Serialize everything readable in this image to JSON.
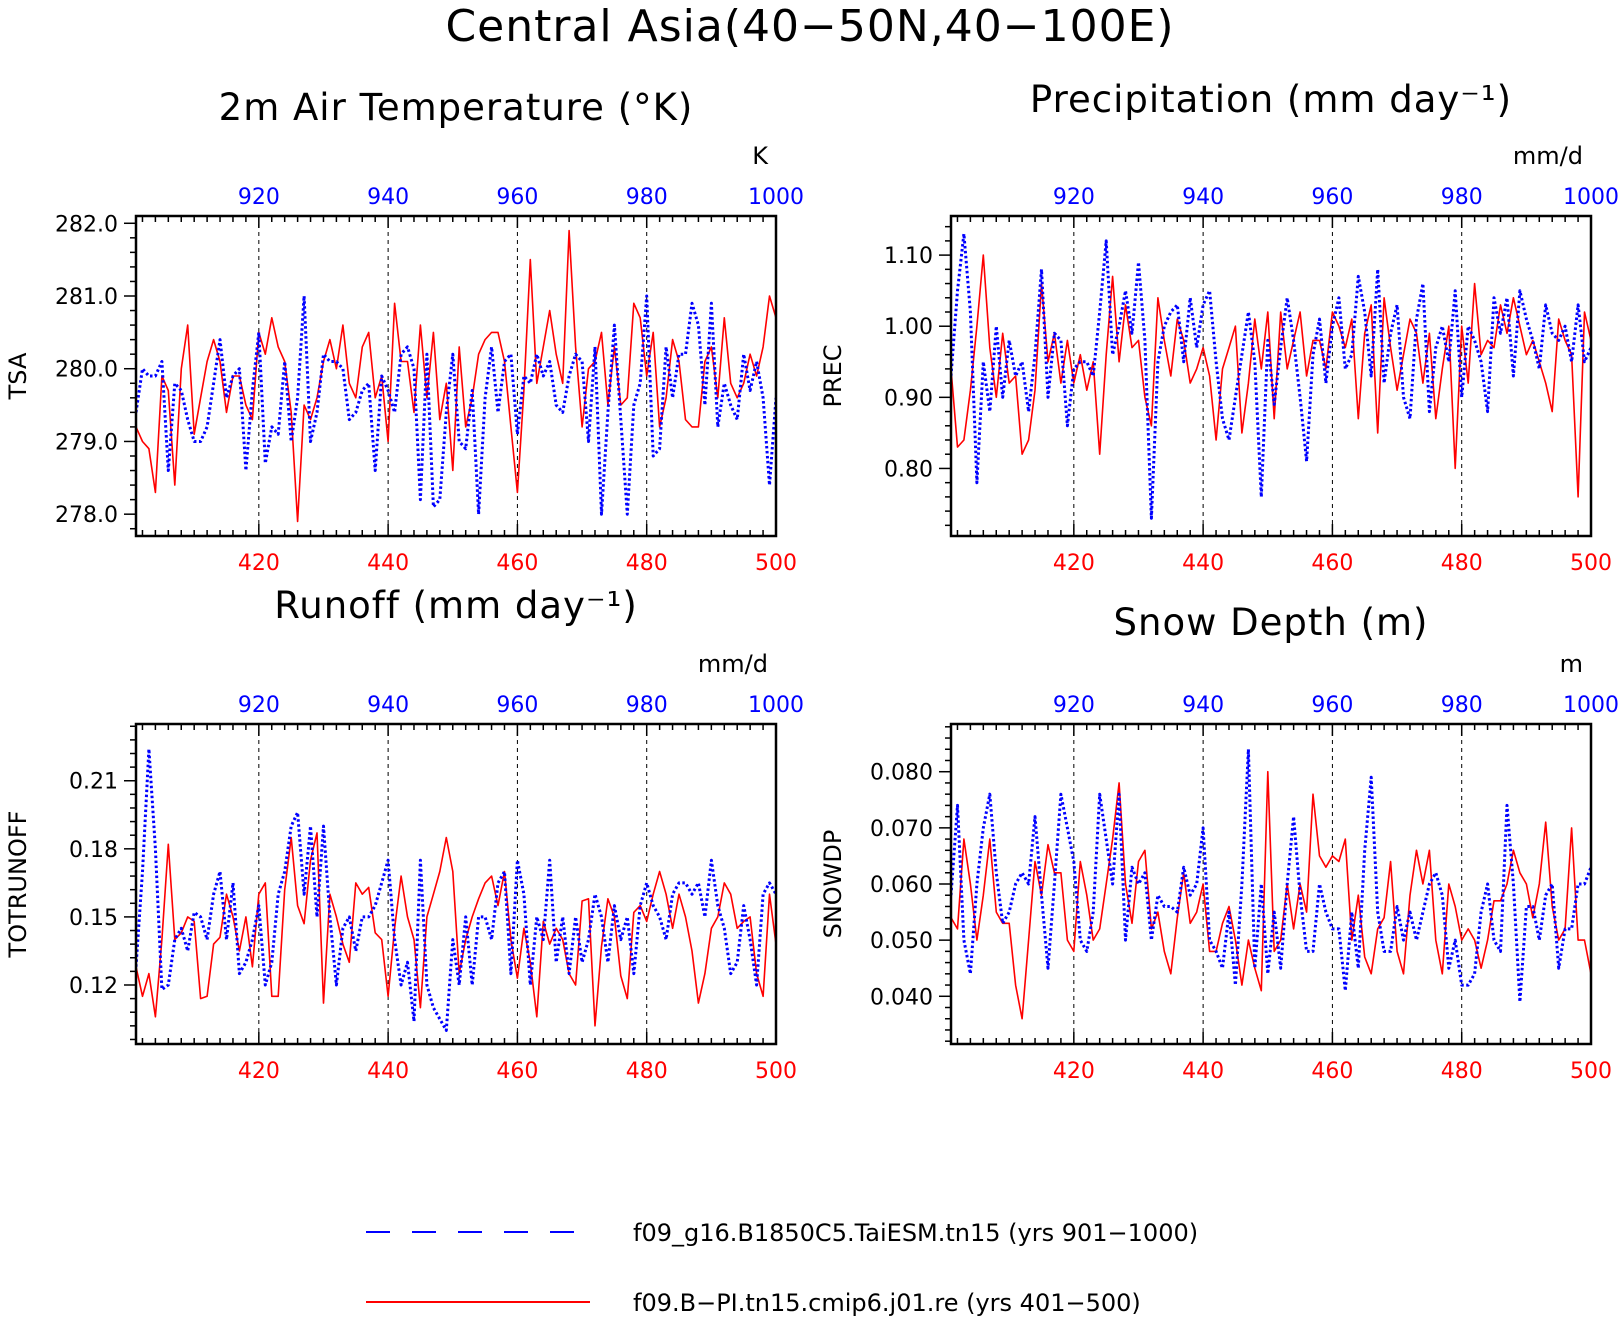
{
  "figure": {
    "title": "Central Asia(40−50N,40−100E)",
    "legend": [
      {
        "label": "f09_g16.B1850C5.TaiESM.tn15 (yrs 901−1000)",
        "color": "#0000ff",
        "style": "dashed"
      },
      {
        "label": "f09.B−PI.tn15.cmip6.j01.re (yrs 401−500)",
        "color": "#ff0000",
        "style": "solid"
      }
    ]
  },
  "chart_data": [
    {
      "type": "line",
      "title": "2m Air Temperature (°K)",
      "ylabel": "TSA",
      "unit_label": "K",
      "x_bottom": {
        "range": [
          401,
          500
        ],
        "ticks": [
          "420",
          "440",
          "460",
          "480",
          "500"
        ],
        "color": "#ff0000"
      },
      "x_top": {
        "range": [
          901,
          1000
        ],
        "ticks": [
          "920",
          "940",
          "960",
          "980",
          "1000"
        ],
        "color": "#0000ff"
      },
      "ylim": [
        277.7,
        282.1
      ],
      "yticks": [
        "278.0",
        "279.0",
        "280.0",
        "281.0",
        "282.0"
      ],
      "grid": "dashed vertical lines at 420, 440, 460, 480",
      "series": [
        {
          "name": "f09_g16.B1850C5.TaiESM.tn15 (yrs 901−1000)",
          "color": "#0000ff",
          "style": "dotted",
          "values": [
            279.4,
            280.0,
            279.9,
            279.9,
            280.1,
            278.6,
            279.8,
            279.7,
            279.3,
            279.0,
            279.0,
            279.2,
            279.8,
            280.4,
            279.6,
            279.9,
            280.0,
            278.6,
            279.7,
            280.5,
            278.7,
            279.2,
            279.1,
            280.1,
            279.0,
            279.6,
            281.0,
            279.0,
            279.4,
            280.2,
            280.1,
            280.1,
            280.0,
            279.3,
            279.4,
            279.7,
            279.8,
            278.6,
            279.9,
            279.7,
            279.4,
            280.2,
            280.3,
            280.0,
            278.2,
            280.2,
            278.1,
            278.2,
            279.4,
            280.2,
            279.0,
            278.9,
            279.7,
            278.0,
            279.6,
            280.3,
            279.4,
            280.1,
            280.2,
            279.1,
            279.9,
            279.8,
            280.2,
            279.9,
            280.1,
            279.5,
            279.4,
            279.9,
            280.2,
            280.1,
            279.0,
            280.3,
            278.0,
            279.4,
            280.6,
            279.3,
            278.0,
            279.5,
            279.8,
            281.0,
            278.8,
            278.9,
            280.3,
            279.6,
            280.2,
            280.2,
            280.9,
            280.6,
            279.5,
            280.9,
            279.2,
            279.8,
            279.5,
            279.3,
            280.2,
            279.7,
            280.1,
            279.6,
            278.4,
            279.6
          ]
        },
        {
          "name": "f09.B−PI.tn15.cmip6.j01.re (yrs 401−500)",
          "color": "#ff0000",
          "style": "solid",
          "values": [
            279.2,
            279.0,
            278.9,
            278.3,
            279.9,
            279.7,
            278.4,
            280.0,
            280.6,
            279.1,
            279.6,
            280.1,
            280.4,
            280.1,
            279.4,
            279.9,
            279.9,
            279.5,
            279.3,
            280.5,
            280.2,
            280.7,
            280.3,
            280.1,
            279.4,
            277.9,
            279.5,
            279.3,
            279.6,
            280.1,
            280.4,
            280.0,
            280.6,
            279.8,
            279.6,
            280.3,
            280.5,
            279.6,
            279.9,
            279.0,
            280.9,
            280.1,
            280.1,
            279.4,
            280.6,
            279.6,
            280.5,
            279.3,
            279.8,
            278.6,
            280.3,
            279.2,
            279.6,
            280.2,
            280.4,
            280.5,
            280.5,
            280.1,
            279.2,
            278.3,
            279.7,
            281.5,
            279.8,
            280.3,
            280.8,
            280.2,
            279.8,
            281.9,
            280.3,
            279.2,
            280.0,
            280.1,
            280.5,
            279.5,
            280.3,
            279.5,
            279.6,
            280.9,
            280.7,
            279.9,
            280.5,
            279.2,
            279.6,
            280.4,
            280.1,
            279.3,
            279.2,
            279.2,
            280.1,
            280.3,
            279.6,
            280.7,
            279.8,
            279.6,
            279.8,
            280.2,
            279.9,
            280.3,
            281.0,
            280.7
          ]
        }
      ]
    },
    {
      "type": "line",
      "title": "Precipitation (mm day⁻¹)",
      "ylabel": "PREC",
      "unit_label": "mm/d",
      "x_bottom": {
        "range": [
          401,
          500
        ],
        "ticks": [
          "420",
          "440",
          "460",
          "480",
          "500"
        ],
        "color": "#ff0000"
      },
      "x_top": {
        "range": [
          901,
          1000
        ],
        "ticks": [
          "920",
          "940",
          "960",
          "980",
          "1000"
        ],
        "color": "#0000ff"
      },
      "ylim": [
        0.705,
        1.155
      ],
      "yticks": [
        "0.80",
        "0.90",
        "1.00",
        "1.10"
      ],
      "grid": "dashed vertical lines at 420, 440, 460, 480",
      "series": [
        {
          "name": "f09_g16.B1850C5.TaiESM.tn15 (yrs 901−1000)",
          "color": "#0000ff",
          "style": "dotted",
          "values": [
            0.93,
            1.05,
            1.13,
            1.02,
            0.78,
            0.95,
            0.88,
            1.0,
            0.9,
            0.98,
            0.93,
            0.95,
            0.88,
            0.96,
            1.08,
            0.9,
            0.99,
            0.98,
            0.86,
            0.94,
            0.95,
            0.95,
            0.93,
            1.02,
            1.12,
            0.96,
            1.0,
            1.05,
            0.99,
            1.09,
            0.98,
            0.73,
            0.95,
            1.0,
            1.02,
            1.03,
            0.95,
            1.04,
            0.97,
            1.03,
            1.05,
            0.95,
            0.87,
            0.84,
            0.9,
            0.96,
            1.02,
            0.95,
            0.76,
            0.98,
            0.89,
            0.97,
            1.04,
            0.98,
            0.9,
            0.81,
            0.96,
            1.01,
            0.92,
            1.0,
            1.04,
            0.94,
            0.96,
            1.07,
            1.02,
            0.93,
            1.08,
            0.92,
            0.99,
            1.03,
            0.9,
            0.87,
            1.01,
            1.06,
            0.88,
            0.97,
            1.0,
            0.95,
            1.05,
            0.9,
            1.0,
            0.98,
            0.95,
            0.88,
            1.04,
            0.99,
            1.04,
            0.93,
            1.05,
            1.01,
            0.98,
            0.94,
            1.03,
            0.99,
            0.98,
            1.0,
            0.95,
            1.03,
            0.95,
            0.97
          ]
        },
        {
          "name": "f09.B−PI.tn15.cmip6.j01.re (yrs 401−500)",
          "color": "#ff0000",
          "style": "solid",
          "values": [
            0.94,
            0.83,
            0.84,
            0.91,
            1.0,
            1.1,
            0.97,
            0.9,
            0.99,
            0.92,
            0.93,
            0.82,
            0.84,
            0.91,
            1.06,
            0.95,
            0.99,
            0.92,
            0.98,
            0.92,
            0.96,
            0.91,
            0.95,
            0.82,
            0.96,
            1.07,
            0.95,
            1.03,
            0.97,
            0.98,
            0.9,
            0.86,
            1.04,
            0.98,
            0.93,
            1.01,
            0.98,
            0.92,
            0.94,
            0.97,
            0.93,
            0.84,
            0.94,
            0.97,
            1.0,
            0.85,
            0.92,
            1.01,
            0.94,
            1.02,
            0.87,
            1.02,
            0.94,
            0.98,
            1.02,
            0.93,
            0.98,
            0.98,
            0.94,
            1.02,
            1.0,
            0.97,
            1.01,
            0.87,
            0.99,
            1.03,
            0.85,
            1.04,
            0.97,
            0.91,
            0.96,
            1.01,
            0.99,
            0.92,
            0.99,
            0.87,
            0.94,
            1.0,
            0.8,
            1.0,
            0.92,
            1.06,
            0.96,
            0.98,
            0.97,
            1.03,
            0.99,
            1.04,
            1.0,
            0.96,
            0.98,
            0.95,
            0.92,
            0.88,
            1.01,
            0.98,
            0.96,
            0.76,
            1.02,
            0.98
          ]
        }
      ]
    },
    {
      "type": "line",
      "title": "Runoff (mm day⁻¹)",
      "ylabel": "TOTRUNOFF",
      "unit_label": "mm/d",
      "x_bottom": {
        "range": [
          401,
          500
        ],
        "ticks": [
          "420",
          "440",
          "460",
          "480",
          "500"
        ],
        "color": "#ff0000"
      },
      "x_top": {
        "range": [
          901,
          1000
        ],
        "ticks": [
          "920",
          "940",
          "960",
          "980",
          "1000"
        ],
        "color": "#0000ff"
      },
      "ylim": [
        0.094,
        0.235
      ],
      "yticks": [
        "0.12",
        "0.15",
        "0.18",
        "0.21"
      ],
      "grid": "dashed vertical lines at 420, 440, 460, 480",
      "series": [
        {
          "name": "f09_g16.B1850C5.TaiESM.tn15 (yrs 901−1000)",
          "color": "#0000ff",
          "style": "dotted",
          "values": [
            0.128,
            0.17,
            0.224,
            0.18,
            0.118,
            0.12,
            0.14,
            0.145,
            0.135,
            0.152,
            0.15,
            0.14,
            0.16,
            0.17,
            0.14,
            0.165,
            0.125,
            0.13,
            0.14,
            0.155,
            0.12,
            0.13,
            0.16,
            0.17,
            0.19,
            0.196,
            0.16,
            0.19,
            0.15,
            0.19,
            0.15,
            0.12,
            0.145,
            0.15,
            0.135,
            0.15,
            0.15,
            0.155,
            0.165,
            0.175,
            0.14,
            0.12,
            0.13,
            0.104,
            0.175,
            0.12,
            0.11,
            0.105,
            0.1,
            0.14,
            0.12,
            0.15,
            0.12,
            0.15,
            0.15,
            0.14,
            0.165,
            0.17,
            0.125,
            0.175,
            0.16,
            0.12,
            0.15,
            0.14,
            0.175,
            0.13,
            0.15,
            0.125,
            0.15,
            0.13,
            0.14,
            0.16,
            0.15,
            0.13,
            0.155,
            0.14,
            0.15,
            0.125,
            0.155,
            0.165,
            0.155,
            0.15,
            0.14,
            0.16,
            0.165,
            0.165,
            0.16,
            0.165,
            0.15,
            0.175,
            0.155,
            0.145,
            0.125,
            0.13,
            0.155,
            0.14,
            0.12,
            0.16,
            0.165,
            0.16
          ]
        },
        {
          "name": "f09.B−PI.tn15.cmip6.j01.re (yrs 401−500)",
          "color": "#ff0000",
          "style": "solid",
          "values": [
            0.128,
            0.115,
            0.125,
            0.106,
            0.14,
            0.182,
            0.14,
            0.143,
            0.15,
            0.148,
            0.114,
            0.115,
            0.138,
            0.141,
            0.16,
            0.15,
            0.135,
            0.15,
            0.128,
            0.16,
            0.165,
            0.115,
            0.115,
            0.162,
            0.185,
            0.155,
            0.147,
            0.175,
            0.187,
            0.112,
            0.16,
            0.15,
            0.138,
            0.13,
            0.165,
            0.16,
            0.163,
            0.143,
            0.14,
            0.115,
            0.145,
            0.168,
            0.15,
            0.14,
            0.11,
            0.15,
            0.16,
            0.17,
            0.185,
            0.17,
            0.125,
            0.14,
            0.15,
            0.158,
            0.165,
            0.168,
            0.155,
            0.17,
            0.14,
            0.123,
            0.145,
            0.13,
            0.106,
            0.148,
            0.138,
            0.145,
            0.14,
            0.125,
            0.12,
            0.157,
            0.158,
            0.102,
            0.137,
            0.158,
            0.15,
            0.124,
            0.114,
            0.152,
            0.155,
            0.148,
            0.16,
            0.17,
            0.16,
            0.145,
            0.16,
            0.15,
            0.135,
            0.112,
            0.125,
            0.145,
            0.15,
            0.165,
            0.16,
            0.145,
            0.148,
            0.15,
            0.125,
            0.115,
            0.16,
            0.138
          ]
        }
      ]
    },
    {
      "type": "line",
      "title": "Snow Depth (m)",
      "ylabel": "SNOWDP",
      "unit_label": "m",
      "x_bottom": {
        "range": [
          401,
          500
        ],
        "ticks": [
          "420",
          "440",
          "460",
          "480",
          "500"
        ],
        "color": "#ff0000"
      },
      "x_top": {
        "range": [
          901,
          1000
        ],
        "ticks": [
          "920",
          "940",
          "960",
          "980",
          "1000"
        ],
        "color": "#0000ff"
      },
      "ylim": [
        0.0315,
        0.0885
      ],
      "yticks": [
        "0.040",
        "0.050",
        "0.060",
        "0.070",
        "0.080"
      ],
      "grid": "dashed vertical lines at 420, 440, 460, 480",
      "series": [
        {
          "name": "f09_g16.B1850C5.TaiESM.tn15 (yrs 901−1000)",
          "color": "#0000ff",
          "style": "dotted",
          "values": [
            0.058,
            0.074,
            0.05,
            0.044,
            0.06,
            0.07,
            0.076,
            0.062,
            0.053,
            0.055,
            0.06,
            0.062,
            0.06,
            0.072,
            0.058,
            0.045,
            0.06,
            0.076,
            0.07,
            0.064,
            0.05,
            0.048,
            0.055,
            0.076,
            0.068,
            0.06,
            0.076,
            0.05,
            0.063,
            0.06,
            0.062,
            0.05,
            0.058,
            0.056,
            0.056,
            0.055,
            0.063,
            0.058,
            0.06,
            0.07,
            0.05,
            0.048,
            0.045,
            0.055,
            0.042,
            0.06,
            0.084,
            0.045,
            0.06,
            0.044,
            0.055,
            0.045,
            0.06,
            0.072,
            0.058,
            0.048,
            0.048,
            0.06,
            0.055,
            0.052,
            0.052,
            0.041,
            0.055,
            0.045,
            0.066,
            0.079,
            0.055,
            0.048,
            0.048,
            0.056,
            0.05,
            0.055,
            0.05,
            0.055,
            0.06,
            0.062,
            0.058,
            0.045,
            0.05,
            0.042,
            0.042,
            0.044,
            0.055,
            0.06,
            0.05,
            0.048,
            0.074,
            0.06,
            0.039,
            0.056,
            0.056,
            0.05,
            0.058,
            0.06,
            0.045,
            0.052,
            0.052,
            0.06,
            0.06,
            0.063
          ]
        },
        {
          "name": "f09.B−PI.tn15.cmip6.j01.re (yrs 401−500)",
          "color": "#ff0000",
          "style": "solid",
          "values": [
            0.054,
            0.052,
            0.068,
            0.06,
            0.05,
            0.058,
            0.068,
            0.055,
            0.053,
            0.053,
            0.042,
            0.036,
            0.05,
            0.064,
            0.058,
            0.067,
            0.062,
            0.062,
            0.05,
            0.048,
            0.064,
            0.058,
            0.05,
            0.052,
            0.06,
            0.068,
            0.078,
            0.06,
            0.053,
            0.064,
            0.066,
            0.052,
            0.055,
            0.048,
            0.044,
            0.054,
            0.062,
            0.053,
            0.055,
            0.06,
            0.048,
            0.048,
            0.053,
            0.056,
            0.05,
            0.042,
            0.05,
            0.045,
            0.041,
            0.08,
            0.048,
            0.05,
            0.06,
            0.052,
            0.06,
            0.055,
            0.076,
            0.065,
            0.063,
            0.065,
            0.064,
            0.068,
            0.05,
            0.058,
            0.047,
            0.044,
            0.052,
            0.054,
            0.064,
            0.048,
            0.044,
            0.058,
            0.066,
            0.06,
            0.066,
            0.05,
            0.044,
            0.06,
            0.056,
            0.05,
            0.052,
            0.05,
            0.045,
            0.05,
            0.057,
            0.057,
            0.06,
            0.066,
            0.062,
            0.06,
            0.054,
            0.06,
            0.071,
            0.056,
            0.05,
            0.052,
            0.07,
            0.05,
            0.05,
            0.044
          ]
        }
      ]
    }
  ]
}
